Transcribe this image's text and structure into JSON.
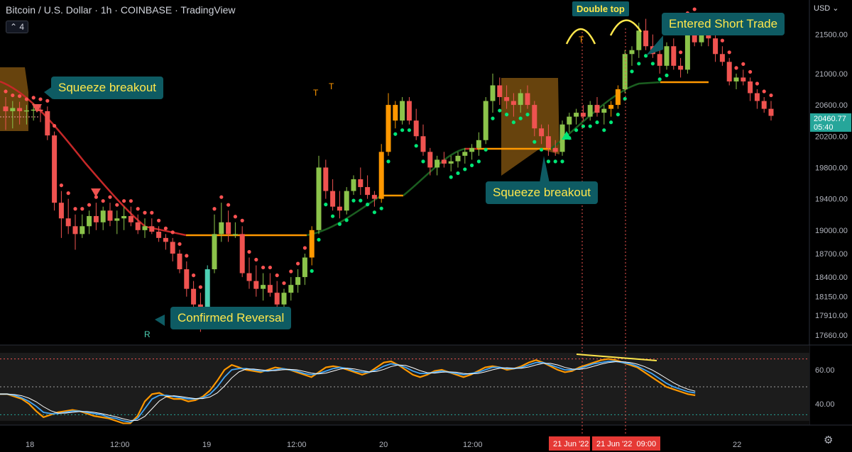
{
  "header": {
    "symbol": "Bitcoin / U.S. Dollar",
    "interval": "1h",
    "exchange": "COINBASE",
    "platform": "TradingView",
    "indicator_count": "4",
    "currency": "USD"
  },
  "price_axis": {
    "ticks": [
      "21500.00",
      "21000.00",
      "20600.00",
      "20200.00",
      "19800.00",
      "19400.00",
      "19000.00",
      "18700.00",
      "18400.00",
      "18150.00",
      "17910.00",
      "17660.00"
    ],
    "current_price": "20460.77",
    "countdown": "05:40",
    "current_color": "#26a69a"
  },
  "oscillator_axis": {
    "ticks": [
      "60.00",
      "40.00"
    ]
  },
  "time_axis": {
    "ticks": [
      "18",
      "12:00",
      "19",
      "12:00",
      "20",
      "12:00",
      "21",
      "22"
    ],
    "highlight_1": "21 Jun '22",
    "highlight_2": "21 Jun '22  09:00"
  },
  "annotations": {
    "squeeze_left": "Squeeze breakout",
    "squeeze_right": "Squeeze breakout",
    "confirmed_reversal": "Confirmed Reversal",
    "entered_short": "Entered Short Trade",
    "double_top": "Double top",
    "reversal_marker": "R",
    "take_profit_marker": "T"
  },
  "colors": {
    "bull": "#8bc34a",
    "bear": "#ef5350",
    "highlight_bull": "#ff9800",
    "reversal_candle": "#4dd0b4",
    "ma_red": "#c62828",
    "ma_green": "#1b5e20",
    "ma_orange": "#ff9800",
    "dot_green": "#00e676",
    "dot_red": "#ff5252",
    "callout_bg": "#0e5b63",
    "callout_text": "#ffe74c",
    "squeeze_box": "#8a5a12"
  },
  "chart_data": {
    "type": "candlestick",
    "title": "Bitcoin / U.S. Dollar · 1h · COINBASE",
    "ylim": [
      17550,
      21850
    ],
    "candles": [
      {
        "o": 20580,
        "h": 20700,
        "l": 20280,
        "c": 20520
      },
      {
        "o": 20520,
        "h": 20650,
        "l": 20300,
        "c": 20560
      },
      {
        "o": 20560,
        "h": 20640,
        "l": 20350,
        "c": 20520
      },
      {
        "o": 20520,
        "h": 20600,
        "l": 20350,
        "c": 20530
      },
      {
        "o": 20530,
        "h": 20620,
        "l": 20400,
        "c": 20540
      },
      {
        "o": 20540,
        "h": 20600,
        "l": 20380,
        "c": 20520
      },
      {
        "o": 20520,
        "h": 20580,
        "l": 20150,
        "c": 20210
      },
      {
        "o": 20210,
        "h": 20260,
        "l": 19250,
        "c": 19350
      },
      {
        "o": 19350,
        "h": 19500,
        "l": 18900,
        "c": 19150
      },
      {
        "o": 19150,
        "h": 19400,
        "l": 18950,
        "c": 19050
      },
      {
        "o": 19050,
        "h": 19200,
        "l": 18750,
        "c": 18950
      },
      {
        "o": 18950,
        "h": 19200,
        "l": 18900,
        "c": 19050
      },
      {
        "o": 19050,
        "h": 19250,
        "l": 18950,
        "c": 19180
      },
      {
        "o": 19180,
        "h": 19350,
        "l": 19000,
        "c": 19100
      },
      {
        "o": 19100,
        "h": 19300,
        "l": 19000,
        "c": 19250
      },
      {
        "o": 19250,
        "h": 19350,
        "l": 19050,
        "c": 19120
      },
      {
        "o": 19120,
        "h": 19250,
        "l": 18950,
        "c": 19150
      },
      {
        "o": 19150,
        "h": 19300,
        "l": 19000,
        "c": 19180
      },
      {
        "o": 19180,
        "h": 19300,
        "l": 19050,
        "c": 19100
      },
      {
        "o": 19100,
        "h": 19200,
        "l": 18950,
        "c": 19000
      },
      {
        "o": 19000,
        "h": 19150,
        "l": 18900,
        "c": 19050
      },
      {
        "o": 19050,
        "h": 19150,
        "l": 18950,
        "c": 18980
      },
      {
        "o": 18980,
        "h": 19050,
        "l": 18850,
        "c": 18900
      },
      {
        "o": 18900,
        "h": 18950,
        "l": 18750,
        "c": 18850
      },
      {
        "o": 18850,
        "h": 18900,
        "l": 18600,
        "c": 18700
      },
      {
        "o": 18700,
        "h": 18750,
        "l": 18450,
        "c": 18500
      },
      {
        "o": 18500,
        "h": 18600,
        "l": 18150,
        "c": 18250
      },
      {
        "o": 18250,
        "h": 18350,
        "l": 18000,
        "c": 18050
      },
      {
        "o": 18050,
        "h": 18200,
        "l": 17700,
        "c": 17800
      },
      {
        "o": 17800,
        "h": 18550,
        "l": 17750,
        "c": 18500
      },
      {
        "o": 18500,
        "h": 19200,
        "l": 18450,
        "c": 18950
      },
      {
        "o": 18950,
        "h": 19350,
        "l": 18850,
        "c": 19100
      },
      {
        "o": 19100,
        "h": 19250,
        "l": 18850,
        "c": 18950
      },
      {
        "o": 18950,
        "h": 19100,
        "l": 18900,
        "c": 18950
      },
      {
        "o": 18950,
        "h": 19050,
        "l": 18400,
        "c": 18450
      },
      {
        "o": 18450,
        "h": 18650,
        "l": 18250,
        "c": 18350
      },
      {
        "o": 18350,
        "h": 18550,
        "l": 18150,
        "c": 18250
      },
      {
        "o": 18250,
        "h": 18450,
        "l": 18100,
        "c": 18300
      },
      {
        "o": 18300,
        "h": 18450,
        "l": 18150,
        "c": 18200
      },
      {
        "o": 18200,
        "h": 18350,
        "l": 18000,
        "c": 18050
      },
      {
        "o": 18050,
        "h": 18250,
        "l": 17950,
        "c": 18200
      },
      {
        "o": 18200,
        "h": 18400,
        "l": 18100,
        "c": 18300
      },
      {
        "o": 18300,
        "h": 18500,
        "l": 18200,
        "c": 18400
      },
      {
        "o": 18400,
        "h": 18700,
        "l": 18300,
        "c": 18650
      },
      {
        "o": 18650,
        "h": 19050,
        "l": 18550,
        "c": 19000
      },
      {
        "o": 19000,
        "h": 19950,
        "l": 18950,
        "c": 19800
      },
      {
        "o": 19800,
        "h": 19900,
        "l": 19400,
        "c": 19500
      },
      {
        "o": 19500,
        "h": 19650,
        "l": 19250,
        "c": 19300
      },
      {
        "o": 19300,
        "h": 19500,
        "l": 19150,
        "c": 19250
      },
      {
        "o": 19250,
        "h": 19550,
        "l": 19200,
        "c": 19500
      },
      {
        "o": 19500,
        "h": 19700,
        "l": 19450,
        "c": 19650
      },
      {
        "o": 19650,
        "h": 19800,
        "l": 19450,
        "c": 19550
      },
      {
        "o": 19550,
        "h": 19700,
        "l": 19400,
        "c": 19450
      },
      {
        "o": 19450,
        "h": 19500,
        "l": 19300,
        "c": 19400
      },
      {
        "o": 19400,
        "h": 20100,
        "l": 19350,
        "c": 20000
      },
      {
        "o": 20000,
        "h": 20750,
        "l": 19950,
        "c": 20600
      },
      {
        "o": 20600,
        "h": 20650,
        "l": 20300,
        "c": 20400
      },
      {
        "o": 20400,
        "h": 20700,
        "l": 20350,
        "c": 20650
      },
      {
        "o": 20650,
        "h": 20700,
        "l": 20350,
        "c": 20400
      },
      {
        "o": 20400,
        "h": 20550,
        "l": 20150,
        "c": 20200
      },
      {
        "o": 20200,
        "h": 20350,
        "l": 19950,
        "c": 20000
      },
      {
        "o": 20000,
        "h": 20050,
        "l": 19700,
        "c": 19800
      },
      {
        "o": 19800,
        "h": 19950,
        "l": 19700,
        "c": 19900
      },
      {
        "o": 19900,
        "h": 20000,
        "l": 19800,
        "c": 19850
      },
      {
        "o": 19850,
        "h": 19950,
        "l": 19750,
        "c": 19880
      },
      {
        "o": 19880,
        "h": 20000,
        "l": 19800,
        "c": 19950
      },
      {
        "o": 19950,
        "h": 20050,
        "l": 19850,
        "c": 20000
      },
      {
        "o": 20000,
        "h": 20100,
        "l": 19900,
        "c": 20050
      },
      {
        "o": 20050,
        "h": 20250,
        "l": 19950,
        "c": 20150
      },
      {
        "o": 20150,
        "h": 20700,
        "l": 20100,
        "c": 20650
      },
      {
        "o": 20650,
        "h": 21000,
        "l": 20500,
        "c": 20850
      },
      {
        "o": 20850,
        "h": 20950,
        "l": 20600,
        "c": 20700
      },
      {
        "o": 20700,
        "h": 20850,
        "l": 20550,
        "c": 20650
      },
      {
        "o": 20650,
        "h": 20750,
        "l": 20450,
        "c": 20600
      },
      {
        "o": 20600,
        "h": 20800,
        "l": 20500,
        "c": 20750
      },
      {
        "o": 20750,
        "h": 20850,
        "l": 20550,
        "c": 20600
      },
      {
        "o": 20600,
        "h": 20650,
        "l": 20200,
        "c": 20300
      },
      {
        "o": 20300,
        "h": 20350,
        "l": 20100,
        "c": 20200
      },
      {
        "o": 20200,
        "h": 20350,
        "l": 19950,
        "c": 20050
      },
      {
        "o": 20050,
        "h": 20150,
        "l": 19950,
        "c": 20000
      },
      {
        "o": 20000,
        "h": 20400,
        "l": 19950,
        "c": 20350
      },
      {
        "o": 20350,
        "h": 20500,
        "l": 20250,
        "c": 20450
      },
      {
        "o": 20450,
        "h": 20550,
        "l": 20350,
        "c": 20500
      },
      {
        "o": 20500,
        "h": 20600,
        "l": 20400,
        "c": 20450
      },
      {
        "o": 20450,
        "h": 20650,
        "l": 20400,
        "c": 20600
      },
      {
        "o": 20600,
        "h": 20700,
        "l": 20450,
        "c": 20500
      },
      {
        "o": 20500,
        "h": 20600,
        "l": 20350,
        "c": 20550
      },
      {
        "o": 20550,
        "h": 20650,
        "l": 20450,
        "c": 20600
      },
      {
        "o": 20600,
        "h": 20850,
        "l": 20550,
        "c": 20800
      },
      {
        "o": 20800,
        "h": 21300,
        "l": 20750,
        "c": 21250
      },
      {
        "o": 21250,
        "h": 21350,
        "l": 21100,
        "c": 21300
      },
      {
        "o": 21300,
        "h": 21650,
        "l": 21200,
        "c": 21550
      },
      {
        "o": 21550,
        "h": 21700,
        "l": 21300,
        "c": 21350
      },
      {
        "o": 21350,
        "h": 21500,
        "l": 21200,
        "c": 21250
      },
      {
        "o": 21250,
        "h": 21350,
        "l": 21000,
        "c": 21100
      },
      {
        "o": 21100,
        "h": 21400,
        "l": 21050,
        "c": 21350
      },
      {
        "o": 21350,
        "h": 21450,
        "l": 21050,
        "c": 21100
      },
      {
        "o": 21100,
        "h": 21200,
        "l": 20950,
        "c": 21050
      },
      {
        "o": 21050,
        "h": 21700,
        "l": 21000,
        "c": 21650
      },
      {
        "o": 21650,
        "h": 21750,
        "l": 21350,
        "c": 21400
      },
      {
        "o": 21400,
        "h": 21600,
        "l": 21350,
        "c": 21550
      },
      {
        "o": 21550,
        "h": 21600,
        "l": 21350,
        "c": 21450
      },
      {
        "o": 21450,
        "h": 21500,
        "l": 21150,
        "c": 21250
      },
      {
        "o": 21250,
        "h": 21350,
        "l": 21100,
        "c": 21150
      },
      {
        "o": 21150,
        "h": 21200,
        "l": 20850,
        "c": 20900
      },
      {
        "o": 20900,
        "h": 21000,
        "l": 20800,
        "c": 20950
      },
      {
        "o": 20950,
        "h": 21050,
        "l": 20850,
        "c": 20900
      },
      {
        "o": 20900,
        "h": 20950,
        "l": 20650,
        "c": 20750
      },
      {
        "o": 20750,
        "h": 20800,
        "l": 20550,
        "c": 20650
      },
      {
        "o": 20650,
        "h": 20700,
        "l": 20500,
        "c": 20550
      },
      {
        "o": 20550,
        "h": 20650,
        "l": 20400,
        "c": 20460
      }
    ],
    "oscillator": {
      "ylim": [
        22,
        78
      ],
      "levels": [
        73,
        50,
        27
      ],
      "series": [
        {
          "name": "K",
          "values": [
            44,
            44,
            42,
            40,
            36,
            30,
            25,
            27,
            29,
            30,
            31,
            30,
            28,
            26,
            25,
            24,
            22,
            20,
            20,
            26,
            38,
            44,
            45,
            42,
            40,
            40,
            38,
            39,
            42,
            47,
            55,
            64,
            68,
            66,
            64,
            63,
            62,
            64,
            66,
            65,
            64,
            62,
            60,
            58,
            62,
            66,
            67,
            66,
            64,
            62,
            60,
            62,
            66,
            70,
            71,
            68,
            64,
            60,
            58,
            60,
            63,
            64,
            62,
            60,
            58,
            60,
            63,
            66,
            67,
            66,
            64,
            65,
            67,
            70,
            72,
            70,
            67,
            64,
            62,
            63,
            66,
            68,
            70,
            72,
            73,
            72,
            70,
            68,
            66,
            62,
            58,
            54,
            50,
            48,
            46,
            44,
            43
          ]
        },
        {
          "name": "D",
          "values": [
            44,
            44,
            43,
            41,
            38,
            34,
            29,
            28,
            28,
            29,
            30,
            30,
            29,
            28,
            27,
            25,
            24,
            22,
            21,
            24,
            32,
            40,
            43,
            43,
            42,
            41,
            40,
            40,
            41,
            44,
            50,
            58,
            64,
            65,
            65,
            64,
            63,
            63,
            64,
            65,
            64,
            63,
            61,
            60,
            61,
            63,
            65,
            66,
            65,
            63,
            62,
            62,
            64,
            67,
            69,
            68,
            66,
            63,
            61,
            61,
            62,
            63,
            62,
            61,
            60,
            61,
            62,
            64,
            66,
            66,
            65,
            65,
            66,
            68,
            70,
            70,
            68,
            66,
            64,
            64,
            65,
            67,
            69,
            70,
            71,
            71,
            70,
            69,
            67,
            64,
            61,
            57,
            53,
            50,
            48,
            46,
            45
          ]
        }
      ]
    }
  }
}
